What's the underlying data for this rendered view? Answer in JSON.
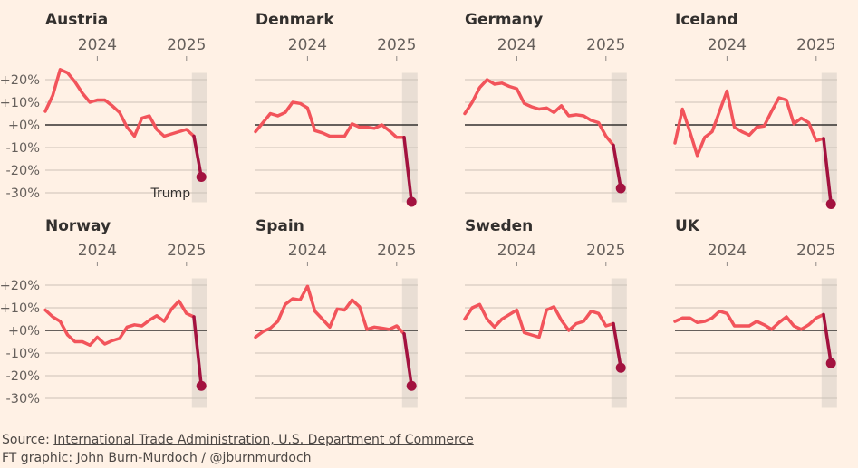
{
  "chart_data": {
    "type": "line",
    "layout": "small-multiples-2x4",
    "x_tick_labels": [
      "2024",
      "2025"
    ],
    "x_start": "2023-06",
    "x_end": "2025-03",
    "x_frequency": "monthly",
    "y_ticks": [
      20,
      10,
      0,
      -10,
      -20,
      -30
    ],
    "y_tick_labels": [
      "+20%",
      "+10%",
      "+0%",
      "-10%",
      "-20%",
      "-30%"
    ],
    "ylim": [
      -35,
      25
    ],
    "highlight_period": "2025-02 to 2025-03",
    "annotation": {
      "panel": "Austria",
      "text": "Trump"
    },
    "colors": {
      "line": "#f2545b",
      "highlight_line": "#a3123f",
      "band": "#e9ded4",
      "background": "#fff1e5"
    },
    "panels": [
      {
        "name": "Austria",
        "values": [
          6,
          13,
          24.5,
          23,
          19,
          14,
          10,
          11,
          11,
          8.5,
          5.5,
          -1,
          -5,
          3,
          4,
          -2,
          -5,
          -4,
          -3,
          -2,
          -5,
          -23
        ]
      },
      {
        "name": "Denmark",
        "values": [
          -3,
          1,
          5,
          4,
          5.5,
          10,
          9.5,
          7.5,
          -2.5,
          -3.5,
          -5,
          -5,
          -5,
          0.5,
          -1,
          -1,
          -1.5,
          0,
          -2.5,
          -5.5,
          -5.5,
          -34
        ]
      },
      {
        "name": "Germany",
        "values": [
          5,
          10,
          16.5,
          20,
          18,
          18.5,
          17,
          16,
          9.5,
          8,
          7,
          7.5,
          5.5,
          8.5,
          4,
          4.5,
          4,
          2,
          1,
          -5,
          -9,
          -28
        ]
      },
      {
        "name": "Iceland",
        "values": [
          -8,
          7,
          -3,
          -13.5,
          -5.5,
          -3,
          6,
          15,
          -1,
          -3,
          -4.5,
          -1,
          -0.5,
          6,
          12,
          11,
          0.5,
          3,
          1,
          -7,
          -6,
          -35
        ]
      },
      {
        "name": "Norway",
        "values": [
          9,
          6,
          4,
          -2,
          -5,
          -5,
          -6.5,
          -3,
          -6,
          -4.5,
          -3.5,
          1.5,
          2.5,
          2,
          4.5,
          6.5,
          4,
          9.5,
          13,
          7.5,
          6,
          -24.5
        ]
      },
      {
        "name": "Spain",
        "values": [
          -3,
          -0.5,
          1,
          4,
          11.5,
          14,
          13.5,
          19.5,
          8.5,
          5,
          1.5,
          9.5,
          9,
          13.5,
          10.5,
          0.5,
          1.5,
          1,
          0.5,
          2,
          -1.5,
          -24.5
        ]
      },
      {
        "name": "Sweden",
        "values": [
          5,
          10,
          11.5,
          5,
          1.5,
          5,
          7,
          9,
          -1,
          -2,
          -3,
          9,
          10.5,
          4.5,
          0,
          3,
          4,
          8.5,
          7.5,
          2,
          3,
          -16.5
        ]
      },
      {
        "name": "UK",
        "values": [
          4,
          5.5,
          5.5,
          3.5,
          4,
          5.5,
          8.5,
          7.5,
          2,
          2,
          2,
          4,
          2.5,
          0.5,
          3.5,
          6,
          2,
          0.5,
          2.5,
          5.5,
          7,
          -14.5
        ]
      }
    ]
  },
  "footer": {
    "source_prefix": "Source: ",
    "source_link": "International Trade Administration, U.S. Department of Commerce",
    "credit": "FT graphic: John Burn-Murdoch / @jburnmurdoch"
  }
}
